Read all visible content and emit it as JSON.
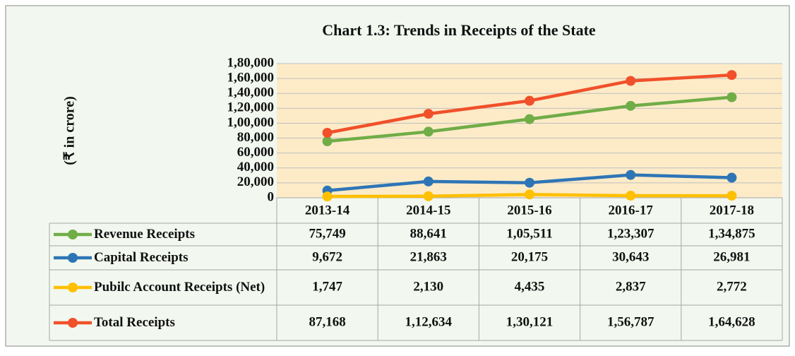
{
  "chart_data": {
    "type": "line",
    "title": "Chart 1.3: Trends in Receipts of the State",
    "y_label": "(₹ in crore)",
    "categories": [
      "2013-14",
      "2014-15",
      "2015-16",
      "2016-17",
      "2017-18"
    ],
    "series": [
      {
        "name": "Revenue Receipts",
        "color": "#70ad47",
        "values": [
          75749,
          88641,
          105511,
          123307,
          134875
        ],
        "value_labels": [
          "75,749",
          "88,641",
          "1,05,511",
          "1,23,307",
          "1,34,875"
        ]
      },
      {
        "name": "Capital Receipts",
        "color": "#2e75b6",
        "values": [
          9672,
          21863,
          20175,
          30643,
          26981
        ],
        "value_labels": [
          "9,672",
          "21,863",
          "20,175",
          "30,643",
          "26,981"
        ]
      },
      {
        "name": "Pubilc Account Receipts (Net)",
        "color": "#ffc000",
        "values": [
          1747,
          2130,
          4435,
          2837,
          2772
        ],
        "value_labels": [
          "1,747",
          "2,130",
          "4,435",
          "2,837",
          "2,772"
        ]
      },
      {
        "name": "Total Receipts",
        "color": "#f0502a",
        "values": [
          87168,
          112634,
          130121,
          156787,
          164628
        ],
        "value_labels": [
          "87,168",
          "1,12,634",
          "1,30,121",
          "1,56,787",
          "1,64,628"
        ]
      }
    ],
    "ylim": [
      0,
      180000
    ],
    "yticks": [
      0,
      {
        "value": 20000,
        "label": "20,000"
      },
      {
        "value": 40000,
        "label": "40,000"
      },
      {
        "value": 60000,
        "label": "60,000"
      },
      {
        "value": 80000,
        "label": "80,000"
      },
      {
        "value": 100000,
        "label": "1,00,000"
      },
      {
        "value": 120000,
        "label": "1,20,000"
      },
      {
        "value": 140000,
        "label": "1,40,000"
      },
      {
        "value": 160000,
        "label": "1,60,000"
      },
      {
        "value": 180000,
        "label": "1,80,000"
      }
    ],
    "grid": true
  }
}
